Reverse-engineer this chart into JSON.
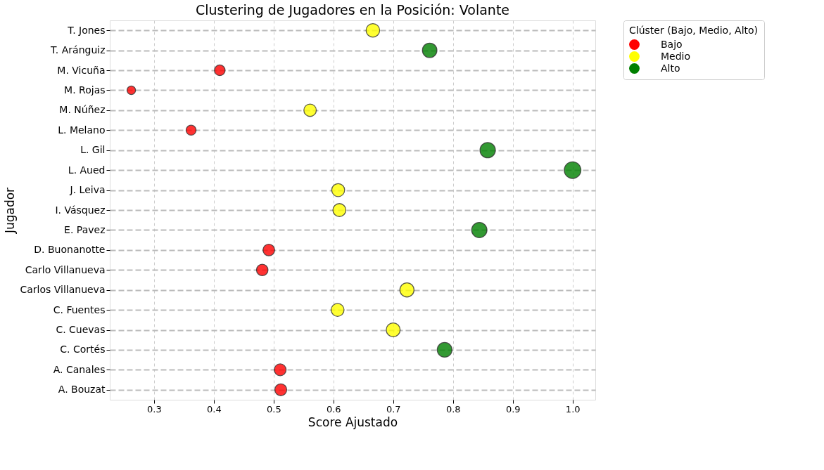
{
  "chart_data": {
    "type": "bubble",
    "orientation": "horizontal",
    "title": "Clustering de Jugadores en la Posición: Volante",
    "xlabel": "Score Ajustado",
    "ylabel": "Jugador",
    "legend_title": "Clúster (Bajo, Medio, Alto)",
    "categories": [
      "T. Jones",
      "T. Aránguiz",
      "M. Vicuña",
      "M. Rojas",
      "M. Núñez",
      "L. Melano",
      "L. Gil",
      "L. Aued",
      "J. Leiva",
      "I. Vásquez",
      "E. Pavez",
      "D. Buonanotte",
      "Carlo Villanueva",
      "Carlos Villanueva",
      "C. Fuentes",
      "C. Cuevas",
      "C. Cortés",
      "A. Canales",
      "A. Bouzat"
    ],
    "series": [
      {
        "name": "Bajo",
        "color": "#ff0000",
        "values": [
          null,
          null,
          0.41,
          0.262,
          null,
          0.362,
          null,
          null,
          null,
          null,
          null,
          0.492,
          0.481,
          null,
          null,
          null,
          null,
          0.511,
          0.512
        ],
        "sizes": [
          null,
          null,
          0.41,
          0.262,
          null,
          0.362,
          null,
          null,
          null,
          null,
          null,
          0.492,
          0.481,
          null,
          null,
          null,
          null,
          0.511,
          0.512
        ]
      },
      {
        "name": "Medio",
        "color": "#ffff00",
        "values": [
          0.666,
          null,
          null,
          null,
          0.561,
          null,
          null,
          null,
          0.608,
          0.61,
          null,
          null,
          null,
          0.723,
          0.607,
          0.7,
          null,
          null,
          null
        ],
        "sizes": [
          0.666,
          null,
          null,
          null,
          0.561,
          null,
          null,
          null,
          0.608,
          0.61,
          null,
          null,
          null,
          0.723,
          0.607,
          0.7,
          null,
          null,
          null
        ]
      },
      {
        "name": "Alto",
        "color": "#008000",
        "values": [
          null,
          0.761,
          null,
          null,
          null,
          null,
          0.858,
          1.0,
          null,
          null,
          0.844,
          null,
          null,
          null,
          null,
          null,
          0.786,
          null,
          null
        ],
        "sizes": [
          null,
          0.761,
          null,
          null,
          null,
          null,
          0.858,
          1.0,
          null,
          null,
          0.844,
          null,
          null,
          null,
          null,
          null,
          0.786,
          null,
          null
        ]
      }
    ],
    "xlim": [
      0.226,
      1.038
    ],
    "xticks": [
      0.3,
      0.4,
      0.5,
      0.6,
      0.7,
      0.8,
      0.9,
      {
        "value": 1.0,
        "label": "1.0"
      }
    ],
    "grid": true,
    "legend": "top right",
    "marker": "circle"
  }
}
